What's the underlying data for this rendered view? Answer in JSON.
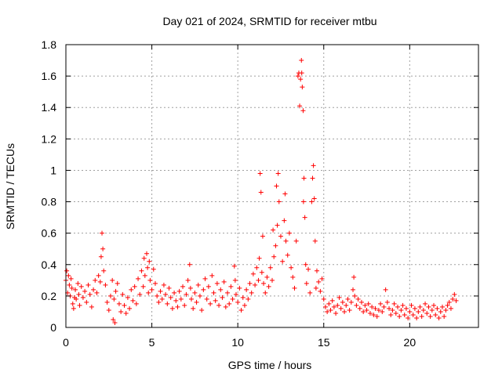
{
  "chart_data": {
    "type": "scatter",
    "title": "Day 021 of 2024, SRMTID for receiver mtbu",
    "xlabel": "GPS time / hours",
    "ylabel": "SRMTID / TECUs",
    "xlim": [
      0,
      24
    ],
    "ylim": [
      0,
      1.8
    ],
    "x_ticks": [
      0,
      5,
      10,
      15,
      20
    ],
    "x_tick_labels": [
      "0",
      "5",
      "10",
      "15",
      "20"
    ],
    "y_ticks": [
      0,
      0.2,
      0.4,
      0.6,
      0.8,
      1.0,
      1.2,
      1.4,
      1.6,
      1.8
    ],
    "y_tick_labels": [
      "0",
      "0.2",
      "0.4",
      "0.6",
      "0.8",
      "1",
      "1.2",
      "1.4",
      "1.6",
      "1.8"
    ],
    "grid": true,
    "marker": "+",
    "color": "#ff0000",
    "series": [
      {
        "name": "SRMTID",
        "points": [
          [
            0.0,
            0.3
          ],
          [
            0.05,
            0.36
          ],
          [
            0.1,
            0.22
          ],
          [
            0.15,
            0.33
          ],
          [
            0.2,
            0.27
          ],
          [
            0.25,
            0.2
          ],
          [
            0.3,
            0.31
          ],
          [
            0.35,
            0.25
          ],
          [
            0.4,
            0.15
          ],
          [
            0.45,
            0.12
          ],
          [
            0.5,
            0.19
          ],
          [
            0.55,
            0.24
          ],
          [
            0.6,
            0.18
          ],
          [
            0.7,
            0.28
          ],
          [
            0.75,
            0.21
          ],
          [
            0.8,
            0.14
          ],
          [
            0.9,
            0.26
          ],
          [
            1.0,
            0.19
          ],
          [
            1.1,
            0.23
          ],
          [
            1.2,
            0.16
          ],
          [
            1.3,
            0.27
          ],
          [
            1.4,
            0.21
          ],
          [
            1.5,
            0.13
          ],
          [
            1.6,
            0.24
          ],
          [
            1.7,
            0.3
          ],
          [
            1.8,
            0.22
          ],
          [
            1.9,
            0.33
          ],
          [
            2.0,
            0.29
          ],
          [
            2.05,
            0.45
          ],
          [
            2.1,
            0.6
          ],
          [
            2.15,
            0.5
          ],
          [
            2.2,
            0.36
          ],
          [
            2.3,
            0.27
          ],
          [
            2.4,
            0.16
          ],
          [
            2.5,
            0.11
          ],
          [
            2.6,
            0.2
          ],
          [
            2.7,
            0.3
          ],
          [
            2.75,
            0.05
          ],
          [
            2.8,
            0.18
          ],
          [
            2.85,
            0.03
          ],
          [
            2.9,
            0.23
          ],
          [
            3.0,
            0.28
          ],
          [
            3.1,
            0.15
          ],
          [
            3.2,
            0.1
          ],
          [
            3.3,
            0.21
          ],
          [
            3.4,
            0.14
          ],
          [
            3.5,
            0.09
          ],
          [
            3.6,
            0.19
          ],
          [
            3.7,
            0.12
          ],
          [
            3.8,
            0.24
          ],
          [
            3.9,
            0.17
          ],
          [
            4.0,
            0.26
          ],
          [
            4.1,
            0.15
          ],
          [
            4.2,
            0.31
          ],
          [
            4.3,
            0.21
          ],
          [
            4.4,
            0.36
          ],
          [
            4.5,
            0.26
          ],
          [
            4.55,
            0.44
          ],
          [
            4.6,
            0.33
          ],
          [
            4.7,
            0.47
          ],
          [
            4.75,
            0.38
          ],
          [
            4.8,
            0.22
          ],
          [
            4.85,
            0.42
          ],
          [
            4.9,
            0.3
          ],
          [
            5.0,
            0.24
          ],
          [
            5.1,
            0.37
          ],
          [
            5.2,
            0.28
          ],
          [
            5.3,
            0.2
          ],
          [
            5.4,
            0.16
          ],
          [
            5.5,
            0.23
          ],
          [
            5.6,
            0.18
          ],
          [
            5.7,
            0.27
          ],
          [
            5.8,
            0.21
          ],
          [
            5.9,
            0.15
          ],
          [
            6.0,
            0.25
          ],
          [
            6.1,
            0.19
          ],
          [
            6.2,
            0.12
          ],
          [
            6.3,
            0.22
          ],
          [
            6.4,
            0.17
          ],
          [
            6.5,
            0.13
          ],
          [
            6.6,
            0.23
          ],
          [
            6.7,
            0.18
          ],
          [
            6.8,
            0.26
          ],
          [
            6.9,
            0.14
          ],
          [
            7.0,
            0.21
          ],
          [
            7.1,
            0.3
          ],
          [
            7.2,
            0.4
          ],
          [
            7.25,
            0.25
          ],
          [
            7.3,
            0.18
          ],
          [
            7.4,
            0.12
          ],
          [
            7.5,
            0.22
          ],
          [
            7.6,
            0.16
          ],
          [
            7.7,
            0.27
          ],
          [
            7.8,
            0.2
          ],
          [
            7.9,
            0.11
          ],
          [
            8.0,
            0.24
          ],
          [
            8.1,
            0.31
          ],
          [
            8.2,
            0.18
          ],
          [
            8.3,
            0.26
          ],
          [
            8.4,
            0.15
          ],
          [
            8.5,
            0.33
          ],
          [
            8.6,
            0.22
          ],
          [
            8.7,
            0.17
          ],
          [
            8.8,
            0.28
          ],
          [
            8.9,
            0.14
          ],
          [
            9.0,
            0.24
          ],
          [
            9.1,
            0.19
          ],
          [
            9.2,
            0.29
          ],
          [
            9.3,
            0.13
          ],
          [
            9.4,
            0.22
          ],
          [
            9.5,
            0.15
          ],
          [
            9.6,
            0.26
          ],
          [
            9.7,
            0.18
          ],
          [
            9.8,
            0.39
          ],
          [
            9.85,
            0.3
          ],
          [
            9.9,
            0.21
          ],
          [
            10.0,
            0.16
          ],
          [
            10.1,
            0.25
          ],
          [
            10.2,
            0.11
          ],
          [
            10.3,
            0.19
          ],
          [
            10.4,
            0.14
          ],
          [
            10.5,
            0.24
          ],
          [
            10.6,
            0.18
          ],
          [
            10.7,
            0.28
          ],
          [
            10.8,
            0.22
          ],
          [
            10.9,
            0.34
          ],
          [
            11.0,
            0.27
          ],
          [
            11.1,
            0.38
          ],
          [
            11.2,
            0.3
          ],
          [
            11.25,
            0.44
          ],
          [
            11.3,
            0.98
          ],
          [
            11.35,
            0.86
          ],
          [
            11.4,
            0.35
          ],
          [
            11.45,
            0.58
          ],
          [
            11.5,
            0.28
          ],
          [
            11.6,
            0.22
          ],
          [
            11.7,
            0.32
          ],
          [
            11.8,
            0.26
          ],
          [
            11.9,
            0.38
          ],
          [
            12.0,
            0.3
          ],
          [
            12.05,
            0.62
          ],
          [
            12.1,
            0.45
          ],
          [
            12.2,
            0.52
          ],
          [
            12.25,
            0.9
          ],
          [
            12.3,
            0.65
          ],
          [
            12.35,
            0.98
          ],
          [
            12.4,
            0.8
          ],
          [
            12.5,
            0.58
          ],
          [
            12.6,
            0.42
          ],
          [
            12.7,
            0.68
          ],
          [
            12.75,
            0.85
          ],
          [
            12.8,
            0.55
          ],
          [
            12.9,
            0.46
          ],
          [
            13.0,
            0.6
          ],
          [
            13.1,
            0.38
          ],
          [
            13.2,
            0.32
          ],
          [
            13.3,
            0.25
          ],
          [
            13.4,
            0.55
          ],
          [
            13.5,
            1.6
          ],
          [
            13.55,
            1.62
          ],
          [
            13.6,
            1.41
          ],
          [
            13.65,
            1.58
          ],
          [
            13.7,
            1.7
          ],
          [
            13.72,
            1.62
          ],
          [
            13.75,
            1.53
          ],
          [
            13.8,
            1.38
          ],
          [
            13.82,
            0.8
          ],
          [
            13.85,
            0.95
          ],
          [
            13.9,
            0.7
          ],
          [
            13.95,
            0.4
          ],
          [
            14.0,
            0.28
          ],
          [
            14.1,
            0.37
          ],
          [
            14.2,
            0.22
          ],
          [
            14.3,
            0.8
          ],
          [
            14.35,
            0.95
          ],
          [
            14.4,
            1.03
          ],
          [
            14.45,
            0.82
          ],
          [
            14.5,
            0.55
          ],
          [
            14.55,
            0.25
          ],
          [
            14.6,
            0.36
          ],
          [
            14.7,
            0.29
          ],
          [
            14.8,
            0.23
          ],
          [
            14.9,
            0.31
          ],
          [
            15.0,
            0.18
          ],
          [
            15.1,
            0.13
          ],
          [
            15.2,
            0.1
          ],
          [
            15.3,
            0.15
          ],
          [
            15.4,
            0.11
          ],
          [
            15.5,
            0.17
          ],
          [
            15.6,
            0.13
          ],
          [
            15.7,
            0.09
          ],
          [
            15.8,
            0.14
          ],
          [
            15.9,
            0.19
          ],
          [
            16.0,
            0.12
          ],
          [
            16.1,
            0.16
          ],
          [
            16.2,
            0.1
          ],
          [
            16.3,
            0.14
          ],
          [
            16.4,
            0.18
          ],
          [
            16.5,
            0.11
          ],
          [
            16.6,
            0.16
          ],
          [
            16.7,
            0.24
          ],
          [
            16.75,
            0.32
          ],
          [
            16.8,
            0.2
          ],
          [
            16.9,
            0.14
          ],
          [
            17.0,
            0.18
          ],
          [
            17.1,
            0.12
          ],
          [
            17.2,
            0.16
          ],
          [
            17.3,
            0.1
          ],
          [
            17.4,
            0.14
          ],
          [
            17.5,
            0.11
          ],
          [
            17.6,
            0.15
          ],
          [
            17.7,
            0.09
          ],
          [
            17.8,
            0.13
          ],
          [
            17.9,
            0.08
          ],
          [
            18.0,
            0.12
          ],
          [
            18.1,
            0.07
          ],
          [
            18.2,
            0.11
          ],
          [
            18.3,
            0.15
          ],
          [
            18.4,
            0.1
          ],
          [
            18.5,
            0.13
          ],
          [
            18.6,
            0.24
          ],
          [
            18.7,
            0.16
          ],
          [
            18.8,
            0.12
          ],
          [
            18.9,
            0.08
          ],
          [
            19.0,
            0.11
          ],
          [
            19.1,
            0.15
          ],
          [
            19.2,
            0.09
          ],
          [
            19.3,
            0.13
          ],
          [
            19.4,
            0.07
          ],
          [
            19.5,
            0.11
          ],
          [
            19.6,
            0.14
          ],
          [
            19.7,
            0.08
          ],
          [
            19.8,
            0.12
          ],
          [
            19.9,
            0.06
          ],
          [
            20.0,
            0.1
          ],
          [
            20.1,
            0.14
          ],
          [
            20.2,
            0.08
          ],
          [
            20.3,
            0.12
          ],
          [
            20.4,
            0.06
          ],
          [
            20.5,
            0.1
          ],
          [
            20.6,
            0.13
          ],
          [
            20.7,
            0.07
          ],
          [
            20.8,
            0.11
          ],
          [
            20.9,
            0.15
          ],
          [
            21.0,
            0.09
          ],
          [
            21.1,
            0.13
          ],
          [
            21.2,
            0.07
          ],
          [
            21.3,
            0.11
          ],
          [
            21.4,
            0.14
          ],
          [
            21.5,
            0.08
          ],
          [
            21.6,
            0.12
          ],
          [
            21.7,
            0.06
          ],
          [
            21.8,
            0.1
          ],
          [
            21.9,
            0.13
          ],
          [
            22.0,
            0.07
          ],
          [
            22.1,
            0.11
          ],
          [
            22.2,
            0.14
          ],
          [
            22.3,
            0.16
          ],
          [
            22.4,
            0.12
          ],
          [
            22.5,
            0.18
          ],
          [
            22.6,
            0.21
          ],
          [
            22.7,
            0.17
          ]
        ]
      }
    ]
  }
}
